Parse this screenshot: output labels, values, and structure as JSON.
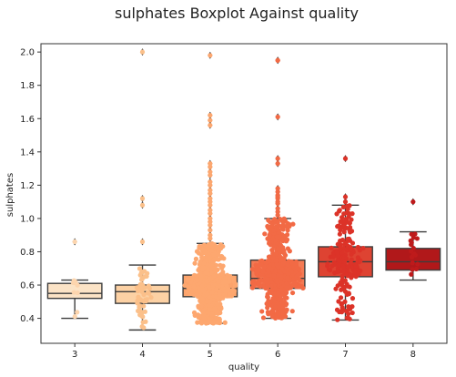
{
  "chart_data": {
    "type": "box",
    "title": "sulphates Boxplot Against quality",
    "xlabel": "quality",
    "ylabel": "sulphates",
    "ylim": [
      0.25,
      2.05
    ],
    "yticks": [
      "0.4",
      "0.6",
      "0.8",
      "1.0",
      "1.2",
      "1.4",
      "1.6",
      "1.8",
      "2.0"
    ],
    "grid": false,
    "overlay": "swarm",
    "categories": [
      "3",
      "4",
      "5",
      "6",
      "7",
      "8"
    ],
    "boxes": [
      {
        "category": "3",
        "min": 0.4,
        "q1": 0.52,
        "median": 0.55,
        "q3": 0.61,
        "max": 0.63,
        "outliers": [
          0.86
        ],
        "color": "#fbe3c6",
        "dot": "#fcd5ae"
      },
      {
        "category": "4",
        "min": 0.33,
        "q1": 0.49,
        "median": 0.56,
        "q3": 0.6,
        "max": 0.72,
        "outliers": [
          0.86,
          1.08,
          1.12,
          2.0
        ],
        "color": "#fcd1a4",
        "dot": "#fbc08a"
      },
      {
        "category": "5",
        "min": 0.37,
        "q1": 0.53,
        "median": 0.58,
        "q3": 0.66,
        "max": 0.85,
        "outliers": [
          0.88,
          0.9,
          0.93,
          0.96,
          0.98,
          1.0,
          1.03,
          1.05,
          1.08,
          1.1,
          1.12,
          1.15,
          1.17,
          1.2,
          1.22,
          1.26,
          1.28,
          1.31,
          1.33,
          1.56,
          1.59,
          1.62,
          1.98
        ],
        "color": "#fca36b",
        "dot": "#fda76f"
      },
      {
        "category": "6",
        "min": 0.4,
        "q1": 0.58,
        "median": 0.64,
        "q3": 0.75,
        "max": 1.0,
        "outliers": [
          1.02,
          1.04,
          1.06,
          1.09,
          1.1,
          1.12,
          1.13,
          1.14,
          1.16,
          1.18,
          1.33,
          1.36,
          1.61,
          1.95,
          1.95
        ],
        "color": "#f47a54",
        "dot": "#f26a45"
      },
      {
        "category": "7",
        "min": 0.39,
        "q1": 0.65,
        "median": 0.74,
        "q3": 0.83,
        "max": 1.08,
        "outliers": [
          1.1,
          1.13,
          1.36
        ],
        "color": "#de4332",
        "dot": "#dc3328"
      },
      {
        "category": "8",
        "min": 0.63,
        "q1": 0.69,
        "median": 0.74,
        "q3": 0.82,
        "max": 0.92,
        "outliers": [
          1.1
        ],
        "color": "#b1181a",
        "dot": "#be1a1b"
      }
    ],
    "swarm_counts": [
      10,
      53,
      681,
      638,
      199,
      18
    ]
  }
}
